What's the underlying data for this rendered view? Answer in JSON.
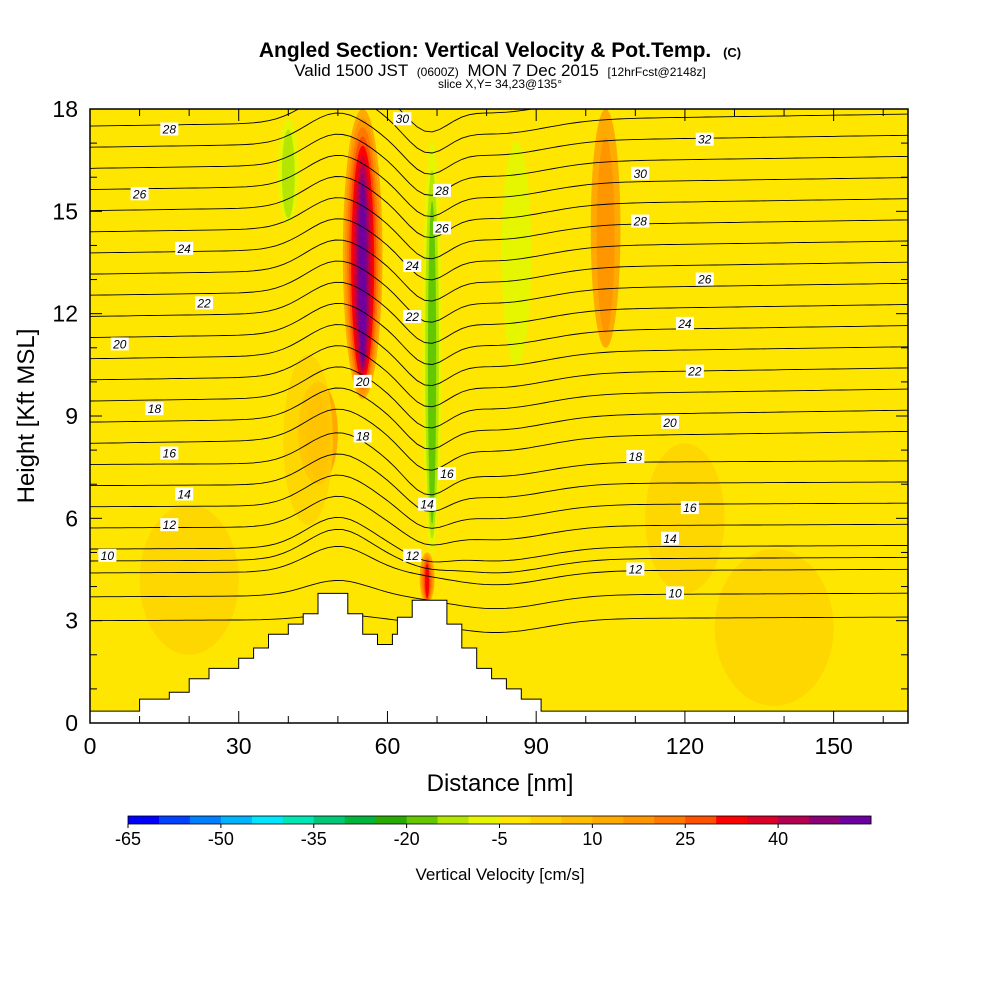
{
  "title": {
    "main": "Angled Section: Vertical Velocity & Pot.Temp.",
    "main_unit": "(C)",
    "valid_prefix": "Valid 1500 JST",
    "valid_z": "(0600Z)",
    "valid_date": "MON 7 Dec 2015",
    "forecast": "[12hrFcst@2148z]",
    "slice": "slice X,Y= 34,23@135°"
  },
  "chart_data": {
    "type": "heatmap",
    "xlabel": "Distance [nm]",
    "ylabel": "Height [Kft MSL]",
    "xlim": [
      0,
      165
    ],
    "ylim": [
      0,
      18
    ],
    "x_ticks": [
      0,
      30,
      60,
      90,
      120,
      150
    ],
    "y_ticks": [
      0,
      3,
      6,
      9,
      12,
      15,
      18
    ],
    "background_color": "#ffe600",
    "colorbar": {
      "title": "Vertical Velocity [cm/s]",
      "tick_labels": [
        "-65",
        "-50",
        "-35",
        "-20",
        "-5",
        "10",
        "25",
        "40"
      ],
      "tick_values": [
        -65,
        -50,
        -35,
        -20,
        -5,
        10,
        25,
        40
      ],
      "colors": [
        "#0000ff",
        "#0040ff",
        "#0080ff",
        "#00b4ff",
        "#00e6ff",
        "#00e6b4",
        "#00c878",
        "#00b43c",
        "#28aa00",
        "#64c800",
        "#b4e600",
        "#e6f500",
        "#ffe600",
        "#ffd200",
        "#ffbe00",
        "#ffaa00",
        "#ff9600",
        "#ff7800",
        "#ff5000",
        "#ff0000",
        "#dc0028",
        "#b40050",
        "#8c0078",
        "#6e00a0"
      ]
    },
    "velocity_features": [
      {
        "kind": "updraft",
        "x_center": 55,
        "x_width": 4,
        "y_bottom": 9.5,
        "y_top": 18,
        "peak": 45
      },
      {
        "kind": "downdraft",
        "x_center": 69,
        "x_width": 2.5,
        "y_bottom": 4.5,
        "y_top": 18,
        "peak": -22
      },
      {
        "kind": "downdraft",
        "x_center": 86,
        "x_width": 5,
        "y_bottom": 10,
        "y_top": 18,
        "peak": -12
      },
      {
        "kind": "downdraft",
        "x_center": 40,
        "x_width": 3,
        "y_bottom": 14.5,
        "y_top": 18,
        "peak": -15
      },
      {
        "kind": "updraft",
        "x_center": 104,
        "x_width": 3,
        "y_bottom": 11,
        "y_top": 18,
        "peak": 10
      },
      {
        "kind": "updraft",
        "x_center": 68,
        "x_width": 1.5,
        "y_bottom": 3.5,
        "y_top": 5,
        "peak": 25
      },
      {
        "kind": "updraft",
        "x_center": 46,
        "x_width": 4,
        "y_bottom": 7,
        "y_top": 10,
        "peak": 12
      }
    ],
    "terrain": [
      [
        0,
        0.35
      ],
      [
        10,
        0.35
      ],
      [
        10,
        0.7
      ],
      [
        16,
        0.7
      ],
      [
        16,
        0.9
      ],
      [
        20,
        0.9
      ],
      [
        20,
        1.3
      ],
      [
        24,
        1.3
      ],
      [
        24,
        1.6
      ],
      [
        30,
        1.6
      ],
      [
        30,
        1.9
      ],
      [
        33,
        1.9
      ],
      [
        33,
        2.2
      ],
      [
        36,
        2.2
      ],
      [
        36,
        2.6
      ],
      [
        40,
        2.6
      ],
      [
        40,
        2.9
      ],
      [
        43,
        2.9
      ],
      [
        43,
        3.2
      ],
      [
        46,
        3.2
      ],
      [
        46,
        3.8
      ],
      [
        52,
        3.8
      ],
      [
        52,
        3.2
      ],
      [
        55,
        3.2
      ],
      [
        55,
        2.6
      ],
      [
        58,
        2.6
      ],
      [
        58,
        2.3
      ],
      [
        61,
        2.3
      ],
      [
        61,
        2.6
      ],
      [
        62,
        2.6
      ],
      [
        62,
        3.1
      ],
      [
        65,
        3.1
      ],
      [
        65,
        3.6
      ],
      [
        72,
        3.6
      ],
      [
        72,
        2.9
      ],
      [
        75,
        2.9
      ],
      [
        75,
        2.2
      ],
      [
        78,
        2.2
      ],
      [
        78,
        1.6
      ],
      [
        81,
        1.6
      ],
      [
        81,
        1.3
      ],
      [
        84,
        1.3
      ],
      [
        84,
        1.0
      ],
      [
        87,
        1.0
      ],
      [
        87,
        0.7
      ],
      [
        91,
        0.7
      ],
      [
        91,
        0.35
      ],
      [
        165,
        0.35
      ]
    ],
    "contour_labels": [
      {
        "x": 16,
        "y": 17.4,
        "text": "28"
      },
      {
        "x": 10,
        "y": 15.5,
        "text": "26"
      },
      {
        "x": 19,
        "y": 13.9,
        "text": "24"
      },
      {
        "x": 23,
        "y": 12.3,
        "text": "22"
      },
      {
        "x": 6,
        "y": 11.1,
        "text": "20"
      },
      {
        "x": 13,
        "y": 9.2,
        "text": "18"
      },
      {
        "x": 16,
        "y": 7.9,
        "text": "16"
      },
      {
        "x": 19,
        "y": 6.7,
        "text": "14"
      },
      {
        "x": 16,
        "y": 5.8,
        "text": "12"
      },
      {
        "x": 3.5,
        "y": 4.9,
        "text": "10"
      },
      {
        "x": 63,
        "y": 17.7,
        "text": "30"
      },
      {
        "x": 71,
        "y": 15.6,
        "text": "28"
      },
      {
        "x": 71,
        "y": 14.5,
        "text": "26"
      },
      {
        "x": 65,
        "y": 13.4,
        "text": "24"
      },
      {
        "x": 65,
        "y": 11.9,
        "text": "22"
      },
      {
        "x": 55,
        "y": 10.0,
        "text": "20"
      },
      {
        "x": 55,
        "y": 8.4,
        "text": "18"
      },
      {
        "x": 72,
        "y": 7.3,
        "text": "16"
      },
      {
        "x": 68,
        "y": 6.4,
        "text": "14"
      },
      {
        "x": 65,
        "y": 4.9,
        "text": "12"
      },
      {
        "x": 124,
        "y": 17.1,
        "text": "32"
      },
      {
        "x": 111,
        "y": 16.1,
        "text": "30"
      },
      {
        "x": 111,
        "y": 14.7,
        "text": "28"
      },
      {
        "x": 124,
        "y": 13.0,
        "text": "26"
      },
      {
        "x": 120,
        "y": 11.7,
        "text": "24"
      },
      {
        "x": 122,
        "y": 10.3,
        "text": "22"
      },
      {
        "x": 117,
        "y": 8.8,
        "text": "20"
      },
      {
        "x": 110,
        "y": 7.8,
        "text": "18"
      },
      {
        "x": 121,
        "y": 6.3,
        "text": "16"
      },
      {
        "x": 117,
        "y": 5.4,
        "text": "14"
      },
      {
        "x": 110,
        "y": 4.5,
        "text": "12"
      },
      {
        "x": 118,
        "y": 3.8,
        "text": "10"
      }
    ],
    "theta_levels": [
      6,
      8,
      10,
      11,
      12,
      13,
      14,
      15,
      16,
      17,
      18,
      19,
      20,
      21,
      22,
      23,
      24,
      25,
      26,
      27,
      28,
      29,
      30,
      31,
      32,
      33
    ]
  }
}
